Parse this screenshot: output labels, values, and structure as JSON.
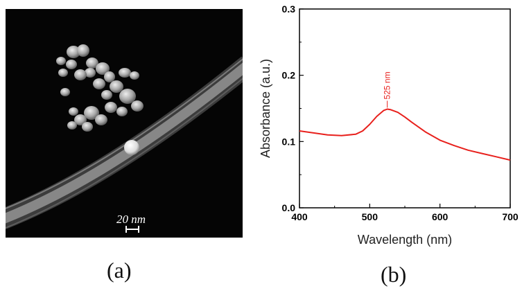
{
  "figure_a": {
    "caption": "(a)",
    "scale_bar_label": "20 nm",
    "content": "SEM micrograph of nanoparticle cluster on a nanofiber"
  },
  "figure_b": {
    "caption": "(b)",
    "peak_label": "525 nm",
    "line_color": "#e8201c"
  },
  "chart_data": {
    "type": "line",
    "title": "",
    "xlabel": "Wavelength (nm)",
    "ylabel": "Absorbance (a.u.)",
    "xlim": [
      400,
      700
    ],
    "ylim": [
      0.0,
      0.3
    ],
    "xticks": [
      "400",
      "500",
      "600",
      "700"
    ],
    "yticks": [
      "0.0",
      "0.1",
      "0.2",
      "0.3"
    ],
    "grid": false,
    "series": [
      {
        "color": "#e8201c",
        "x": [
          400,
          420,
          440,
          460,
          480,
          490,
          500,
          510,
          520,
          525,
          530,
          540,
          550,
          560,
          580,
          600,
          620,
          640,
          660,
          680,
          700
        ],
        "y": [
          0.116,
          0.113,
          0.11,
          0.109,
          0.111,
          0.116,
          0.126,
          0.138,
          0.147,
          0.149,
          0.148,
          0.144,
          0.137,
          0.129,
          0.114,
          0.102,
          0.094,
          0.087,
          0.082,
          0.077,
          0.072
        ]
      }
    ],
    "annotations": [
      {
        "text": "525 nm",
        "x": 525,
        "y": 0.149
      }
    ]
  }
}
